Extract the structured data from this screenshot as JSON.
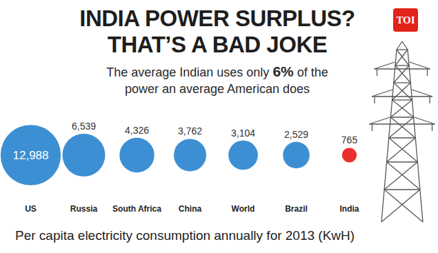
{
  "chart_data": {
    "type": "bubble",
    "title": "INDIA POWER SURPLUS? THAT’S A BAD JOKE",
    "subtitle": "The average Indian uses only 6% of the power an average American does",
    "logo": "TOI",
    "caption": "Per capita electricity consumption annually for 2013 (KwH)",
    "categories": [
      "US",
      "Russia",
      "South Africa",
      "China",
      "World",
      "Brazil",
      "India"
    ],
    "values": [
      12988,
      6539,
      4326,
      3762,
      3104,
      2529,
      765
    ],
    "value_labels": [
      "12,988",
      "6,539",
      "4,326",
      "3,762",
      "3,104",
      "2,529",
      "765"
    ],
    "colors": [
      "#3d8fd3",
      "#3d8fd3",
      "#3d8fd3",
      "#3d8fd3",
      "#3d8fd3",
      "#3d8fd3",
      "#e8302c"
    ],
    "data_labels": true,
    "tick_labels": "x"
  }
}
